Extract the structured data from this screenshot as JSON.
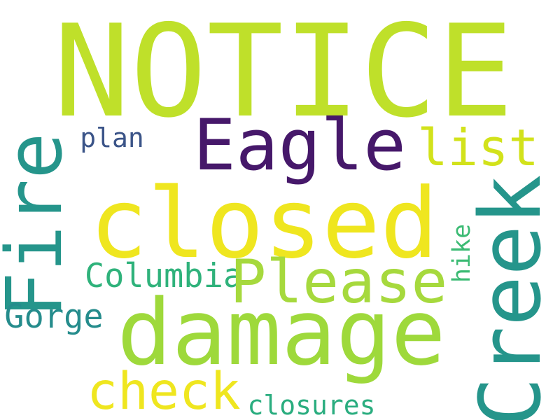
{
  "colors": {
    "background": "#ffffff",
    "lime": "#bfe02a",
    "purple": "#46186a",
    "yellow_green": "#d2e21b",
    "yellow": "#efe61f",
    "teal": "#25958b",
    "navy": "#3b5488",
    "green": "#2fb27b",
    "light_green": "#9ed93b",
    "green_yellow": "#a6d93d",
    "sea_green": "#2aad7f",
    "cyan_teal": "#258c8c",
    "mint": "#3cbb74"
  },
  "words": [
    {
      "text": "NOTICE",
      "color": "lime"
    },
    {
      "text": "Eagle",
      "color": "purple"
    },
    {
      "text": "list",
      "color": "yellow_green"
    },
    {
      "text": "plan",
      "color": "navy"
    },
    {
      "text": "closed",
      "color": "yellow"
    },
    {
      "text": "Fire",
      "color": "teal"
    },
    {
      "text": "Creek",
      "color": "teal"
    },
    {
      "text": "Columbia",
      "color": "green"
    },
    {
      "text": "Please",
      "color": "green_yellow"
    },
    {
      "text": "hike",
      "color": "mint"
    },
    {
      "text": "Gorge",
      "color": "cyan_teal"
    },
    {
      "text": "damage",
      "color": "light_green"
    },
    {
      "text": "check",
      "color": "yellow"
    },
    {
      "text": "closures",
      "color": "sea_green"
    }
  ]
}
